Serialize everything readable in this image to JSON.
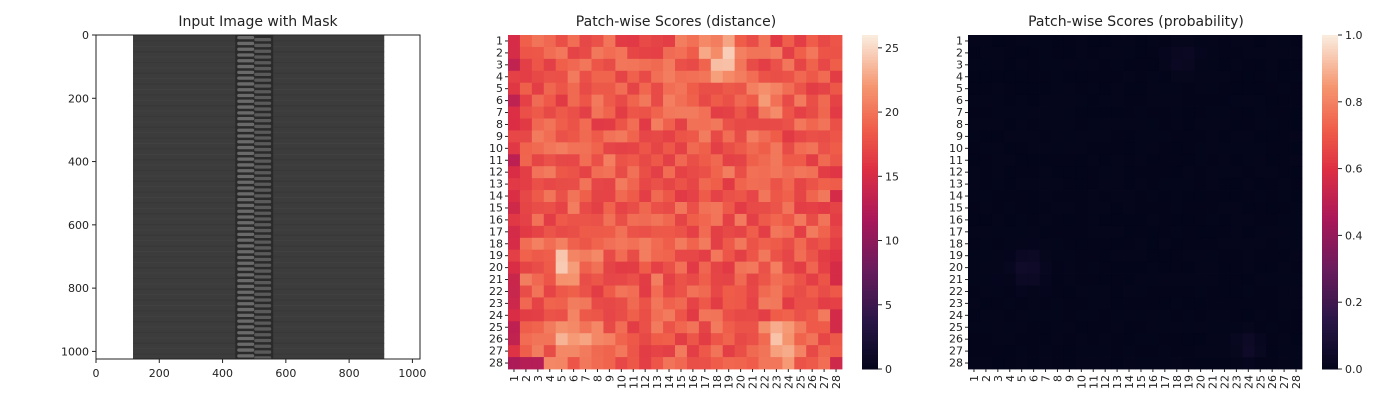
{
  "chart_data": [
    {
      "type": "image",
      "title": "Input Image with Mask",
      "xlim": [
        0,
        1024
      ],
      "ylim": [
        1024,
        0
      ],
      "xticks": [
        "0",
        "200",
        "400",
        "600",
        "800",
        "1000"
      ],
      "yticks": [
        "0",
        "200",
        "400",
        "600",
        "800",
        "1000"
      ],
      "xtick_values": [
        0,
        200,
        400,
        600,
        800,
        1000
      ],
      "ytick_values": [
        0,
        200,
        400,
        600,
        800,
        1000
      ],
      "content": "zipper",
      "colors": {
        "fabric": "#3c3c3c",
        "background": "#ffffff",
        "teeth": "#6a6a6a"
      }
    },
    {
      "type": "heatmap",
      "title": "Patch-wise Scores (distance)",
      "grid": [
        28,
        28
      ],
      "xticks": [
        "1",
        "2",
        "3",
        "4",
        "5",
        "6",
        "7",
        "8",
        "9",
        "10",
        "11",
        "12",
        "13",
        "14",
        "15",
        "16",
        "17",
        "18",
        "19",
        "20",
        "21",
        "22",
        "23",
        "24",
        "25",
        "26",
        "27",
        "28"
      ],
      "yticks": [
        "1",
        "2",
        "3",
        "4",
        "5",
        "6",
        "7",
        "8",
        "9",
        "10",
        "11",
        "12",
        "13",
        "14",
        "15",
        "16",
        "17",
        "18",
        "19",
        "20",
        "21",
        "22",
        "23",
        "24",
        "25",
        "26",
        "27",
        "28"
      ],
      "colorbar": {
        "min": 0,
        "max": 26,
        "ticks": [
          "0",
          "5",
          "10",
          "15",
          "20",
          "25"
        ],
        "tick_values": [
          0,
          5,
          10,
          15,
          20,
          25
        ]
      },
      "colormap": "rocket",
      "base_value": 18.5,
      "notes": "values mostly 16-22; dark-red column 1 and top-left, light patches near rows 2-3 cols 17-19, rows 18-20 cols 4-5, rows 25-26 cols 4-6 and 23-24"
    },
    {
      "type": "heatmap",
      "title": "Patch-wise Scores (probability)",
      "grid": [
        28,
        28
      ],
      "xticks": [
        "1",
        "2",
        "3",
        "4",
        "5",
        "6",
        "7",
        "8",
        "9",
        "10",
        "11",
        "12",
        "13",
        "14",
        "15",
        "16",
        "17",
        "18",
        "19",
        "20",
        "21",
        "22",
        "23",
        "24",
        "25",
        "26",
        "27",
        "28"
      ],
      "yticks": [
        "1",
        "2",
        "3",
        "4",
        "5",
        "6",
        "7",
        "8",
        "9",
        "10",
        "11",
        "12",
        "13",
        "14",
        "15",
        "16",
        "17",
        "18",
        "19",
        "20",
        "21",
        "22",
        "23",
        "24",
        "25",
        "26",
        "27",
        "28"
      ],
      "colorbar": {
        "min": 0.0,
        "max": 1.0,
        "ticks": [
          "0.0",
          "0.2",
          "0.4",
          "0.6",
          "0.8",
          "1.0"
        ],
        "tick_values": [
          0,
          0.2,
          0.4,
          0.6,
          0.8,
          1.0
        ]
      },
      "colormap": "rocket",
      "base_value": 0.0,
      "notes": "almost all near 0; faint patches at rows 18-20 col 5-6 and rows 25-26 cols 23-24"
    }
  ]
}
